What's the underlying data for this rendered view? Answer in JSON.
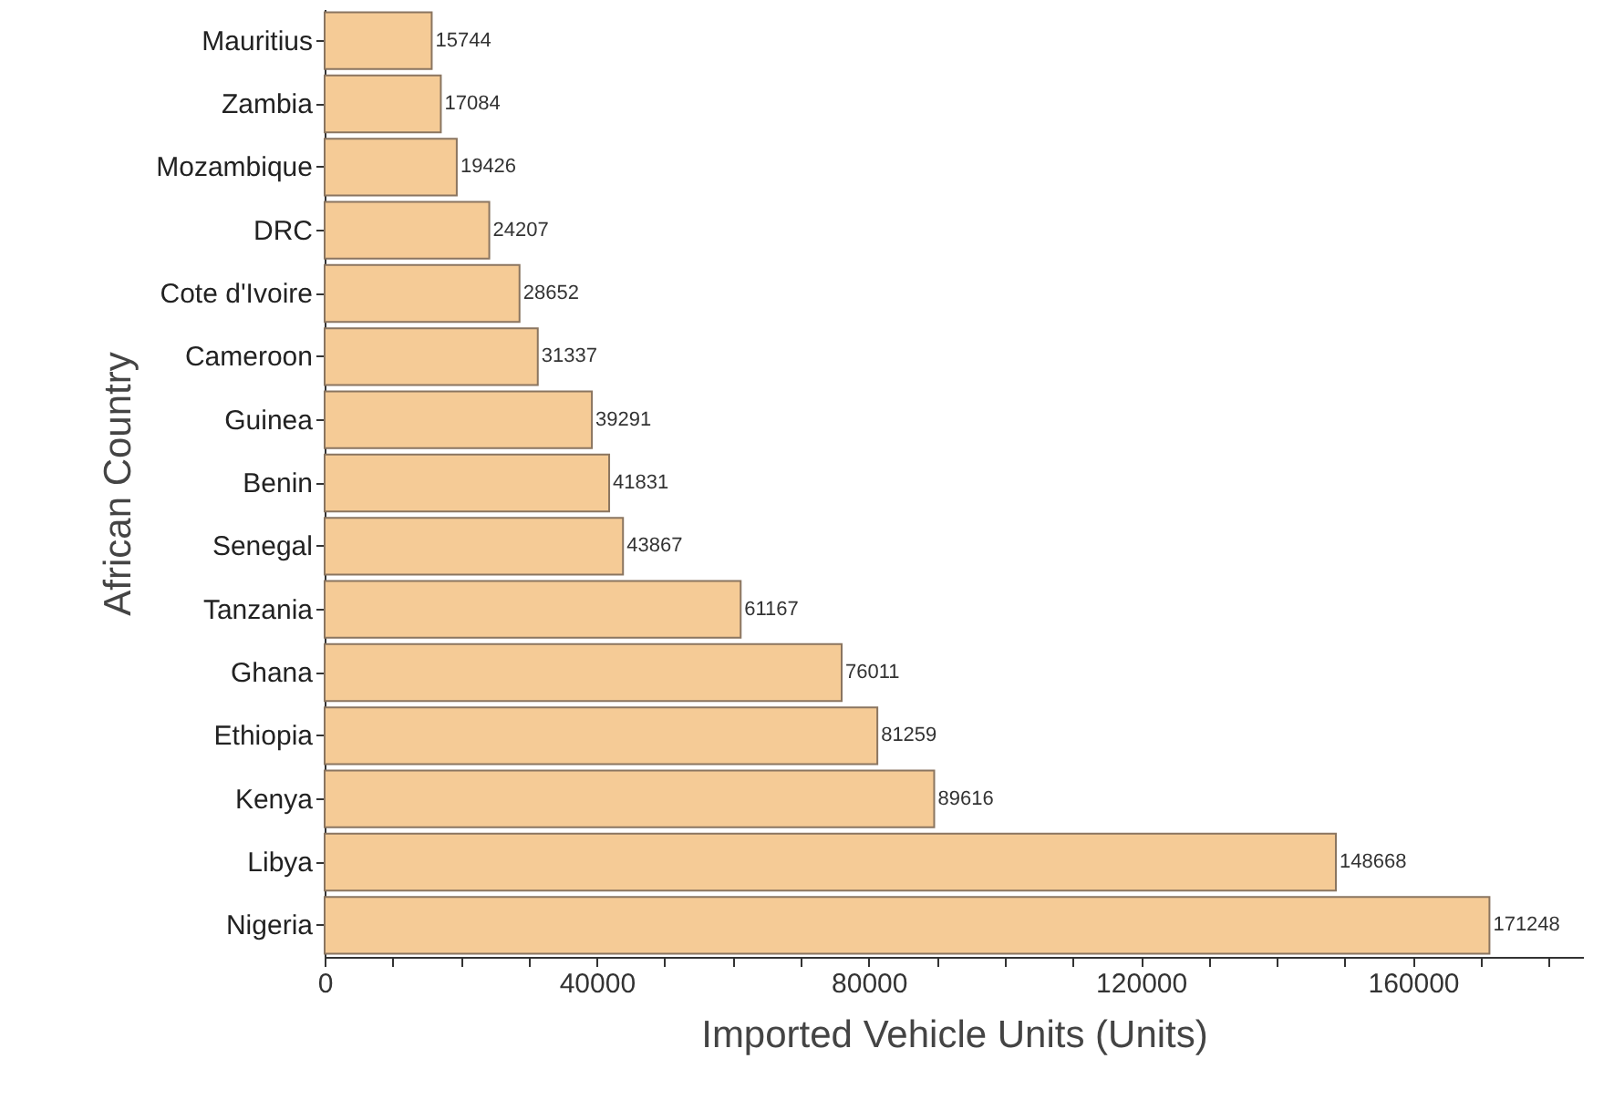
{
  "chart_data": {
    "type": "bar",
    "orientation": "horizontal",
    "xlabel": "Imported Vehicle Units (Units)",
    "ylabel": "African Country",
    "categories": [
      "Mauritius",
      "Zambia",
      "Mozambique",
      "DRC",
      "Cote d'Ivoire",
      "Cameroon",
      "Guinea",
      "Benin",
      "Senegal",
      "Tanzania",
      "Ghana",
      "Ethiopia",
      "Kenya",
      "Libya",
      "Nigeria"
    ],
    "values": [
      15744,
      17084,
      19426,
      24207,
      28652,
      31337,
      39291,
      41831,
      43867,
      61167,
      76011,
      81259,
      89616,
      148668,
      171248
    ],
    "color": "#f5cb96",
    "xlim": [
      0,
      185000
    ],
    "xticks": [
      0,
      {
        "value": 10000,
        "label": null
      },
      {
        "value": 20000,
        "label": null
      },
      {
        "value": 30000,
        "label": null
      },
      40000,
      {
        "value": 50000,
        "label": null
      },
      {
        "value": 60000,
        "label": null
      },
      {
        "value": 70000,
        "label": null
      },
      80000,
      {
        "value": 90000,
        "label": null
      },
      {
        "value": 100000,
        "label": null
      },
      {
        "value": 110000,
        "label": null
      },
      120000,
      {
        "value": 130000,
        "label": null
      },
      {
        "value": 140000,
        "label": null
      },
      {
        "value": 150000,
        "label": null
      },
      160000,
      {
        "value": 170000,
        "label": null
      },
      {
        "value": 180000,
        "label": null
      }
    ],
    "data_labels": true
  }
}
